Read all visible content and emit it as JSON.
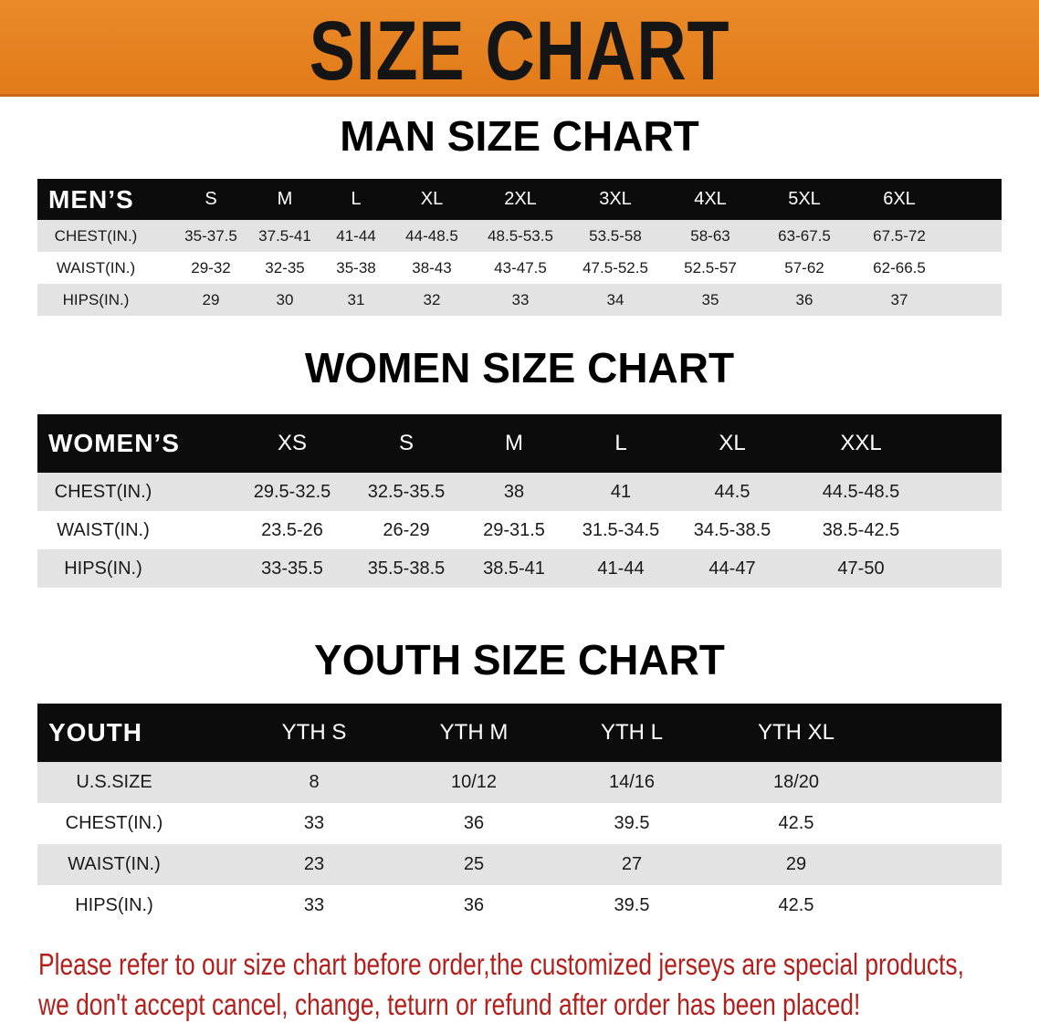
{
  "banner": {
    "title": "SIZE CHART",
    "color": "#e5801d"
  },
  "men": {
    "title": "MAN SIZE CHART",
    "header_label": "MEN’S",
    "sizes": [
      "S",
      "M",
      "L",
      "XL",
      "2XL",
      "3XL",
      "4XL",
      "5XL",
      "6XL"
    ],
    "rows": [
      {
        "label": "CHEST(IN.)",
        "values": [
          "35-37.5",
          "37.5-41",
          "41-44",
          "44-48.5",
          "48.5-53.5",
          "53.5-58",
          "58-63",
          "63-67.5",
          "67.5-72"
        ]
      },
      {
        "label": "WAIST(IN.)",
        "values": [
          "29-32",
          "32-35",
          "35-38",
          "38-43",
          "43-47.5",
          "47.5-52.5",
          "52.5-57",
          "57-62",
          "62-66.5"
        ]
      },
      {
        "label": "HIPS(IN.)",
        "values": [
          "29",
          "30",
          "31",
          "32",
          "33",
          "34",
          "35",
          "36",
          "37"
        ]
      }
    ]
  },
  "women": {
    "title": "WOMEN SIZE CHART",
    "header_label": "WOMEN’S",
    "sizes": [
      "XS",
      "S",
      "M",
      "L",
      "XL",
      "XXL"
    ],
    "rows": [
      {
        "label": "CHEST(IN.)",
        "values": [
          "29.5-32.5",
          "32.5-35.5",
          "38",
          "41",
          "44.5",
          "44.5-48.5"
        ]
      },
      {
        "label": "WAIST(IN.)",
        "values": [
          "23.5-26",
          "26-29",
          "29-31.5",
          "31.5-34.5",
          "34.5-38.5",
          "38.5-42.5"
        ]
      },
      {
        "label": "HIPS(IN.)",
        "values": [
          "33-35.5",
          "35.5-38.5",
          "38.5-41",
          "41-44",
          "44-47",
          "47-50"
        ]
      }
    ]
  },
  "youth": {
    "title": "YOUTH SIZE CHART",
    "header_label": "YOUTH",
    "sizes": [
      "YTH S",
      "YTH M",
      "YTH L",
      "YTH XL"
    ],
    "rows": [
      {
        "label": "U.S.SIZE",
        "values": [
          "8",
          "10/12",
          "14/16",
          "18/20"
        ]
      },
      {
        "label": "CHEST(IN.)",
        "values": [
          "33",
          "36",
          "39.5",
          "42.5"
        ]
      },
      {
        "label": "WAIST(IN.)",
        "values": [
          "23",
          "25",
          "27",
          "29"
        ]
      },
      {
        "label": "HIPS(IN.)",
        "values": [
          "33",
          "36",
          "39.5",
          "42.5"
        ]
      }
    ]
  },
  "footer": {
    "line1": "Please refer to our size chart before order,the customized jerseys are special products,",
    "line2": "we don't accept cancel, change, teturn or refund after order has been placed!",
    "color": "#b3201c"
  }
}
